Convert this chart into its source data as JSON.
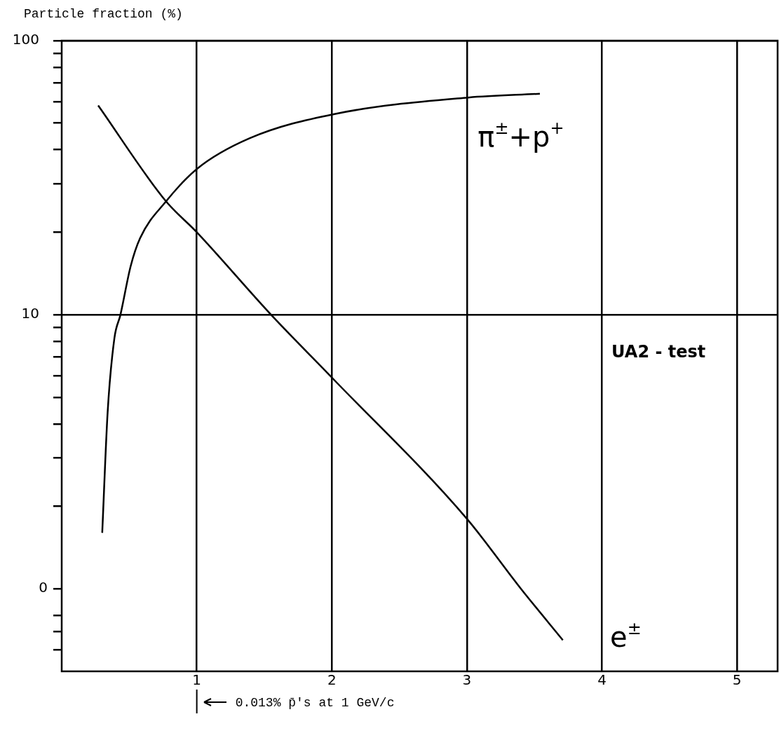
{
  "chart_data": {
    "type": "line",
    "ylabel": "Particle fraction (%)",
    "log": "y",
    "xlim": [
      0,
      5.3
    ],
    "xticks": [
      1,
      2,
      3,
      4,
      5
    ],
    "ylim": [
      0.5,
      100
    ],
    "yticks": [
      {
        "value": 0.6,
        "label": null
      },
      {
        "value": 0.7,
        "label": null
      },
      {
        "value": 0.8,
        "label": null
      },
      {
        "value": 1,
        "label": null
      },
      {
        "value": 2,
        "label": null
      },
      {
        "value": 3,
        "label": null
      },
      {
        "value": 4,
        "label": null
      },
      {
        "value": 5,
        "label": null
      },
      {
        "value": 6,
        "label": null
      },
      {
        "value": 7,
        "label": null
      },
      {
        "value": 8,
        "label": null
      },
      {
        "value": 9,
        "label": null
      },
      10,
      {
        "value": 20,
        "label": null
      },
      {
        "value": 30,
        "label": null
      },
      {
        "value": 40,
        "label": null
      },
      {
        "value": 50,
        "label": null
      },
      {
        "value": 60,
        "label": null
      },
      {
        "value": 70,
        "label": null
      },
      {
        "value": 80,
        "label": null
      },
      {
        "value": 90,
        "label": null
      },
      100
    ],
    "grid": true,
    "legend": false,
    "marker": "none",
    "line_style": "solid",
    "series": [
      {
        "name": "π$^{±}$+p$^{+}$",
        "color": "#000000",
        "x": [
          0.3,
          0.34,
          0.39,
          0.435,
          0.51,
          0.58,
          0.775,
          1.0,
          1.39,
          2.02,
          3.01,
          3.54
        ],
        "values": [
          1.6,
          4.4,
          8.2,
          10,
          15,
          19,
          26,
          34,
          44,
          54,
          62,
          64
        ]
      },
      {
        "name": "e$^{±}$",
        "color": "#000000",
        "x": [
          0.27,
          0.77,
          1.0,
          1.55,
          2.0,
          3.0,
          3.4,
          3.71
        ],
        "values": [
          58,
          26,
          20,
          10,
          5.9,
          1.8,
          1,
          0.65
        ]
      }
    ],
    "annotations": [
      "UA2 - test",
      "0.013% p̄'s at 1 GeV/c",
      "0"
    ]
  }
}
